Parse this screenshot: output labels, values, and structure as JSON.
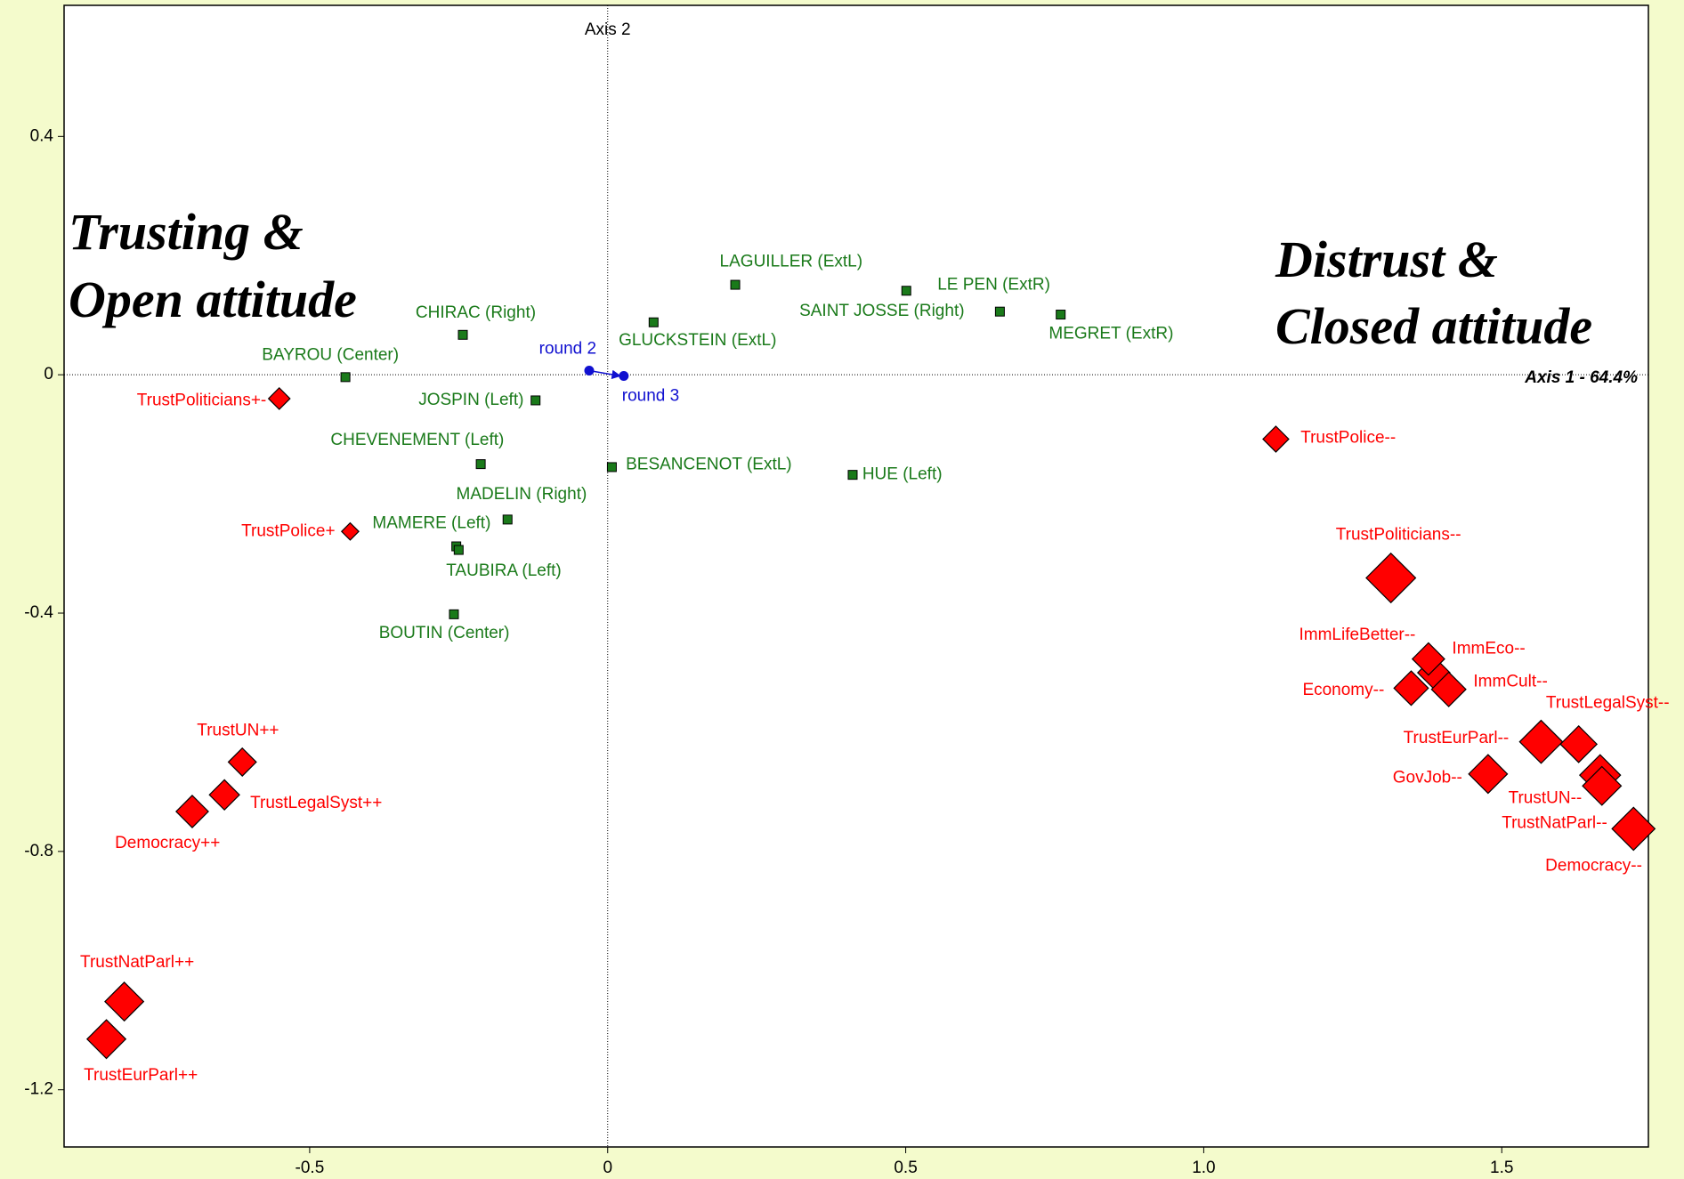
{
  "chart_data": {
    "type": "scatter",
    "xlim": [
      -0.912,
      1.746
    ],
    "ylim": [
      -1.296,
      0.62
    ],
    "xticks": [
      -0.5,
      0,
      0.5,
      {
        "value": 1,
        "label": "1.0"
      },
      1.5
    ],
    "yticks": [
      0.4,
      0,
      -0.4,
      -0.8,
      -1.2
    ],
    "x_axis_label": "Axis 1 - 64.4%",
    "y_axis_label": "Axis 2",
    "annotations": [
      "Trusting &",
      "Open attitude",
      "Distrust &",
      "Closed attitude"
    ],
    "series": [
      {
        "color": "#1a7a1a",
        "marker": "square",
        "labels": [
          "CHIRAC (Right)",
          "BAYROU (Center)",
          "JOSPIN (Left)",
          "CHEVENEMENT (Left)",
          "MADELIN (Right)",
          "MAMERE (Left)",
          "TAUBIRA (Left)",
          "BOUTIN (Center)",
          "GLUCKSTEIN (ExtL)",
          "LAGUILLER (ExtL)",
          "LE PEN (ExtR)",
          "SAINT JOSSE (Right)",
          "MEGRET (ExtR)",
          "BESANCENOT (ExtL)",
          "HUE (Left)"
        ],
        "x": [
          -0.243,
          -0.44,
          -0.121,
          -0.213,
          -0.168,
          -0.254,
          -0.25,
          -0.258,
          0.077,
          0.214,
          0.501,
          0.658,
          0.76,
          0.007,
          0.411
        ],
        "y": [
          0.067,
          -0.004,
          -0.043,
          -0.15,
          -0.243,
          -0.288,
          -0.294,
          -0.402,
          0.088,
          0.151,
          0.141,
          0.106,
          0.101,
          -0.155,
          -0.168
        ]
      },
      {
        "color": "#1010d0",
        "marker": "circle",
        "arrow": true,
        "labels": [
          "round 2",
          "round 3"
        ],
        "x": [
          -0.031,
          0.027
        ],
        "y": [
          0.007,
          -0.002
        ]
      },
      {
        "color": "#ff0000",
        "marker": "diamond",
        "labels": [
          "TrustPoliticians+-",
          "TrustPolice+",
          "TrustUN++",
          "TrustLegalSyst++",
          "Democracy++",
          "TrustNatParl++",
          "TrustEurParl++",
          "TrustPolice--",
          "TrustPoliticians--",
          "ImmLifeBetter--",
          "ImmEco--",
          "ImmCult--",
          "Economy--",
          "TrustEurParl--",
          "TrustLegalSyst--",
          "GovJob--",
          "TrustUN--",
          "TrustNatParl--",
          "Democracy--"
        ],
        "x": [
          -0.551,
          -0.432,
          -0.613,
          -0.643,
          -0.697,
          -0.811,
          -0.841,
          1.121,
          1.314,
          1.386,
          1.377,
          1.411,
          1.348,
          1.566,
          1.629,
          1.477,
          1.665,
          1.668,
          1.721
        ],
        "y": [
          -0.04,
          -0.263,
          -0.65,
          -0.705,
          -0.733,
          -1.052,
          -1.115,
          -0.108,
          -0.341,
          -0.5,
          -0.477,
          -0.528,
          -0.526,
          -0.616,
          -0.62,
          -0.67,
          -0.672,
          -0.69,
          -0.762
        ],
        "sizes": [
          10,
          8,
          13,
          14,
          15,
          18,
          18,
          12,
          23,
          15,
          15,
          16,
          16,
          20,
          17,
          18,
          19,
          18,
          20
        ]
      }
    ]
  }
}
